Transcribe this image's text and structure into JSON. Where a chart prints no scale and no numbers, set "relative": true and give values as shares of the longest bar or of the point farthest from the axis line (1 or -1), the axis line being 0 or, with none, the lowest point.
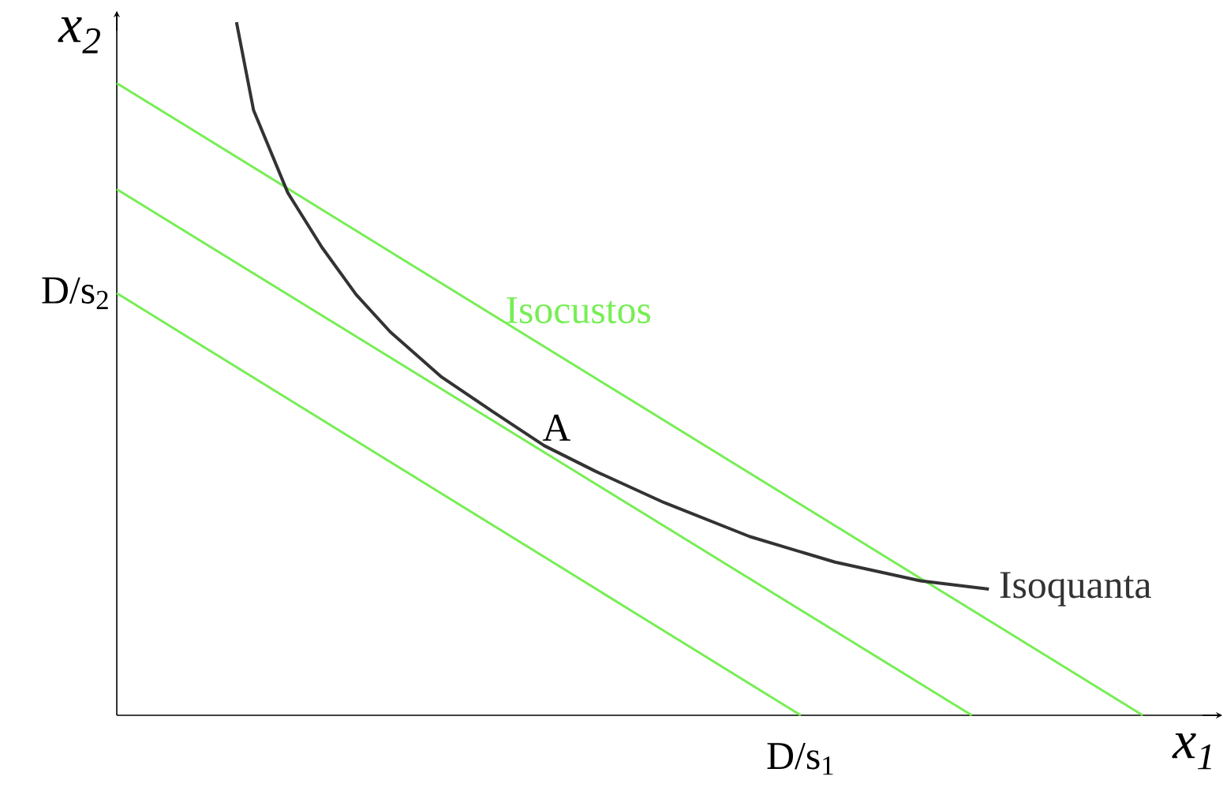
{
  "chart_data": {
    "type": "line",
    "relative": true,
    "xlabel": "x$_{1}$",
    "ylabel": "x$_{2}$",
    "categories": [
      null,
      null,
      null,
      null,
      null,
      null,
      null,
      null,
      null,
      null,
      null,
      null,
      null,
      null,
      null,
      null,
      null,
      null,
      null,
      null,
      null,
      null,
      null,
      null,
      null,
      null,
      null,
      null,
      null,
      null,
      null,
      null,
      null,
      null,
      null,
      null,
      null,
      null,
      null,
      null,
      null,
      null,
      null,
      null,
      null,
      null,
      null,
      null,
      null,
      null,
      null,
      null,
      null,
      null,
      null,
      null,
      null,
      null,
      null,
      null,
      null,
      null,
      null,
      null,
      null
    ],
    "series": [
      {
        "name": "Isocustos",
        "color": "#77ee55",
        "values": [
          0.912,
          null,
          null,
          null,
          null,
          null,
          null,
          null,
          null,
          null,
          null,
          null,
          null,
          null,
          null,
          null,
          null,
          null,
          null,
          null,
          null,
          null,
          null,
          null,
          null,
          null,
          null,
          null,
          null,
          null,
          null,
          null,
          null,
          null,
          null,
          null,
          null,
          null,
          null,
          null,
          null,
          null,
          null,
          null,
          null,
          null,
          null,
          null,
          null,
          null,
          null,
          null,
          null,
          null,
          null,
          null,
          null,
          null,
          null,
          null,
          0,
          null,
          null,
          null,
          null
        ]
      },
      {
        "color": "#77ee55",
        "values": [
          0.759,
          null,
          null,
          null,
          null,
          null,
          null,
          null,
          null,
          null,
          null,
          null,
          null,
          null,
          null,
          null,
          null,
          null,
          null,
          null,
          null,
          null,
          null,
          null,
          null,
          null,
          null,
          null,
          null,
          null,
          null,
          null,
          null,
          null,
          null,
          null,
          null,
          null,
          null,
          null,
          null,
          null,
          null,
          null,
          null,
          null,
          null,
          null,
          null,
          null,
          0,
          null,
          null,
          null,
          null,
          null,
          null,
          null,
          null,
          null,
          null,
          null,
          null,
          null,
          null
        ]
      },
      {
        "color": "#77ee55",
        "values": [
          0.609,
          null,
          null,
          null,
          null,
          null,
          null,
          null,
          null,
          null,
          null,
          null,
          null,
          null,
          null,
          null,
          null,
          null,
          null,
          null,
          null,
          null,
          null,
          null,
          null,
          null,
          null,
          null,
          null,
          null,
          null,
          null,
          null,
          null,
          null,
          null,
          null,
          null,
          null,
          null,
          0,
          null,
          null,
          null,
          null,
          null,
          null,
          null,
          null,
          null,
          null,
          null,
          null,
          null,
          null,
          null,
          null,
          null,
          null,
          null,
          null,
          null,
          null,
          null,
          null
        ]
      },
      {
        "name": "Isoquanta",
        "color": "#333333",
        "values": [
          null,
          null,
          null,
          null,
          null,
          null,
          null,
          1.0,
          0.873,
          null,
          0.754,
          null,
          0.675,
          null,
          0.607,
          null,
          0.553,
          null,
          null,
          0.488,
          null,
          null,
          0.438,
          null,
          null,
          0.389,
          null,
          null,
          0.352,
          null,
          null,
          null,
          0.307,
          null,
          null,
          null,
          null,
          0.258,
          null,
          null,
          null,
          null,
          0.221,
          null,
          null,
          null,
          null,
          0.194,
          null,
          null,
          null,
          0.182,
          null,
          null,
          null,
          null,
          null,
          null,
          null,
          null,
          null,
          null,
          null,
          null,
          null
        ]
      }
    ],
    "annotations": [
      "A",
      "D/s$_{2}$",
      "D/s$_{1}$"
    ]
  }
}
